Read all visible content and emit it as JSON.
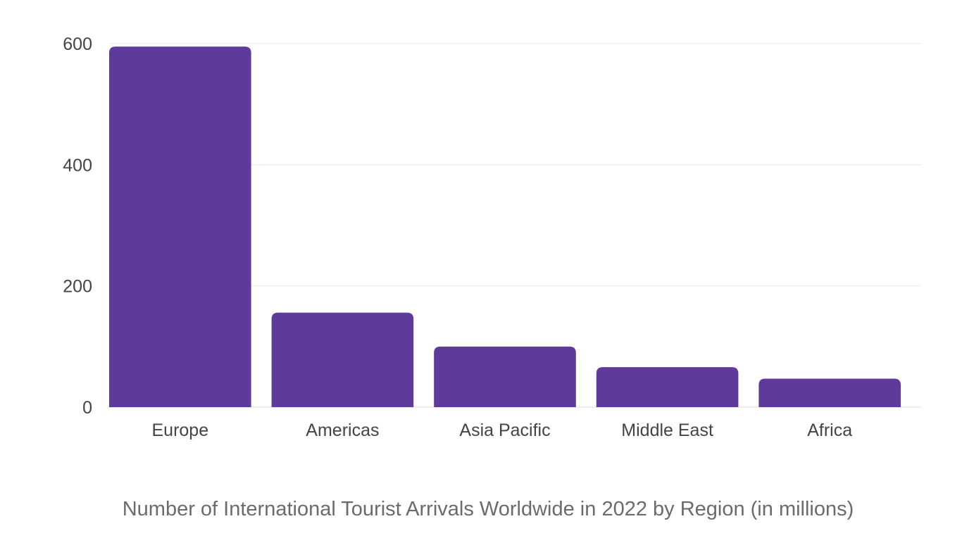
{
  "chart_data": {
    "type": "bar",
    "title": "Number of International Tourist Arrivals Worldwide in 2022 by Region (in millions)",
    "xlabel": "",
    "ylabel": "",
    "categories": [
      "Europe",
      "Americas",
      "Asia Pacific",
      "Middle East",
      "Africa"
    ],
    "values": [
      595,
      156,
      100,
      66,
      47
    ],
    "yticks": [
      0,
      200,
      400,
      600
    ],
    "ylim": [
      0,
      600
    ],
    "grid": true,
    "legend": "none",
    "bar_color": "#5e3a9b"
  }
}
